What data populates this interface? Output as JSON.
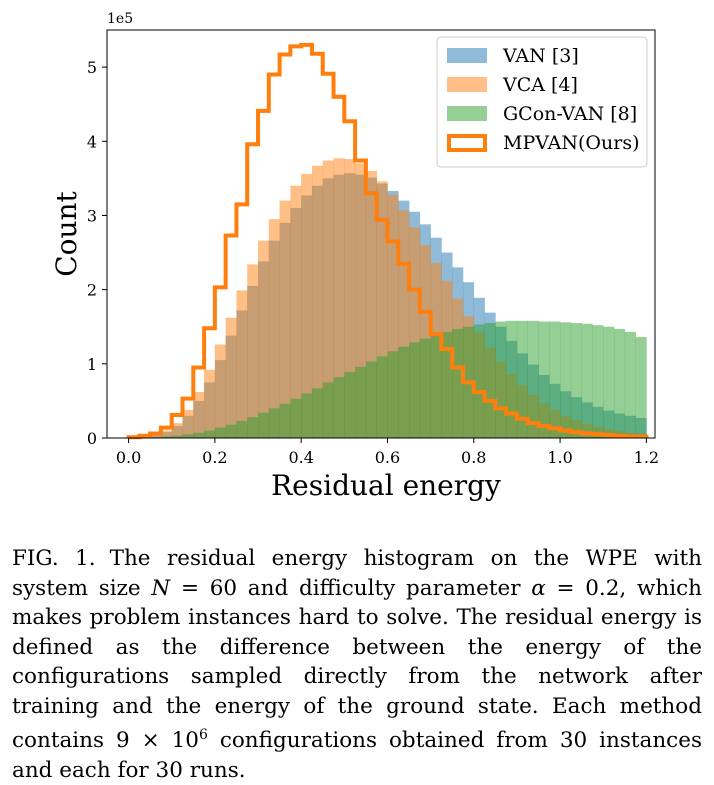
{
  "chart_data": {
    "type": "histogram",
    "xlabel": "Residual energy",
    "ylabel": "Count",
    "y_scale_note": "1e5",
    "xlim": [
      -0.05,
      1.22
    ],
    "ylim": [
      0,
      5.5
    ],
    "bin_width": 0.025,
    "bins_start": 0.0,
    "xticks": [
      "0.0",
      "0.2",
      "0.4",
      "0.6",
      "0.8",
      "1.0",
      "1.2"
    ],
    "yticks": [
      "0",
      "1",
      "2",
      "3",
      "4",
      "5"
    ],
    "legend_position": "top-right",
    "series": [
      {
        "name": "VAN [3]",
        "style": "filled",
        "color": "#1f77b4",
        "values": [
          0.01,
          0.02,
          0.04,
          0.08,
          0.16,
          0.3,
          0.5,
          0.75,
          1.05,
          1.38,
          1.72,
          2.05,
          2.38,
          2.66,
          2.9,
          3.1,
          3.27,
          3.4,
          3.5,
          3.55,
          3.57,
          3.55,
          3.51,
          3.43,
          3.33,
          3.2,
          3.05,
          2.88,
          2.7,
          2.5,
          2.3,
          2.1,
          1.89,
          1.69,
          1.5,
          1.31,
          1.14,
          0.99,
          0.85,
          0.73,
          0.63,
          0.55,
          0.48,
          0.42,
          0.37,
          0.33,
          0.3,
          0.27
        ]
      },
      {
        "name": "VCA [4]",
        "style": "filled",
        "color": "#ff7f0e",
        "values": [
          0.01,
          0.02,
          0.05,
          0.1,
          0.2,
          0.38,
          0.62,
          0.92,
          1.26,
          1.62,
          1.99,
          2.34,
          2.66,
          2.95,
          3.2,
          3.4,
          3.56,
          3.67,
          3.74,
          3.77,
          3.76,
          3.7,
          3.6,
          3.46,
          3.28,
          3.07,
          2.84,
          2.6,
          2.36,
          2.12,
          1.88,
          1.64,
          1.42,
          1.22,
          1.03,
          0.86,
          0.71,
          0.58,
          0.47,
          0.38,
          0.3,
          0.24,
          0.19,
          0.15,
          0.12,
          0.09,
          0.07,
          0.06
        ]
      },
      {
        "name": "GCon-VAN [8]",
        "style": "filled",
        "color": "#2ca02c",
        "values": [
          0.0,
          0.01,
          0.01,
          0.02,
          0.03,
          0.05,
          0.07,
          0.1,
          0.14,
          0.18,
          0.23,
          0.28,
          0.34,
          0.4,
          0.46,
          0.53,
          0.6,
          0.67,
          0.75,
          0.82,
          0.89,
          0.96,
          1.03,
          1.1,
          1.17,
          1.23,
          1.29,
          1.34,
          1.39,
          1.43,
          1.47,
          1.5,
          1.53,
          1.55,
          1.57,
          1.58,
          1.58,
          1.58,
          1.57,
          1.57,
          1.56,
          1.55,
          1.54,
          1.52,
          1.5,
          1.47,
          1.43,
          1.36
        ]
      },
      {
        "name": "MPVAN(Ours)",
        "style": "step",
        "color": "#ff7f0e",
        "values": [
          0.01,
          0.03,
          0.06,
          0.14,
          0.31,
          0.53,
          0.95,
          1.48,
          2.03,
          2.73,
          3.15,
          3.96,
          4.41,
          4.9,
          5.17,
          5.28,
          5.3,
          5.18,
          4.91,
          4.6,
          4.27,
          3.74,
          3.3,
          2.94,
          2.65,
          2.35,
          2.0,
          1.7,
          1.4,
          1.2,
          0.95,
          0.75,
          0.62,
          0.5,
          0.4,
          0.33,
          0.26,
          0.2,
          0.16,
          0.13,
          0.1,
          0.08,
          0.06,
          0.05,
          0.04,
          0.03,
          0.02,
          0.02
        ]
      }
    ]
  },
  "caption": {
    "label": "FIG. 1.",
    "line1_before": "The residual energy histogram on the WPE with system size ",
    "var_N": "N",
    "eq_N": " = 60 and difficulty parameter ",
    "var_alpha": "α",
    "eq_alpha": " = 0.2, which makes problem instances hard to solve. The residual energy is defined as the difference between the energy of the configurations sampled directly from the network after training and the energy of the ground state. Each method contains ",
    "count_mantissa": "9 × 10",
    "count_exp": "6",
    "tail": " configurations obtained from 30 instances and each for 30 runs."
  }
}
